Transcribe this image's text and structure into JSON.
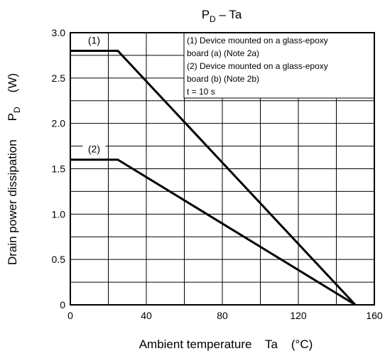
{
  "chart_data": {
    "type": "line",
    "title_main": "P",
    "title_sub": "D",
    "title_rest": " – Ta",
    "xlabel": "Ambient temperature    Ta    (°C)",
    "ylabel_text": "Drain power dissipation",
    "ylabel_sym_main": "P",
    "ylabel_sym_sub": "D",
    "ylabel_unit": "(W)",
    "xlim": [
      0,
      160
    ],
    "ylim": [
      0,
      3.0
    ],
    "x_ticks": [
      0,
      40,
      80,
      120,
      160
    ],
    "x_tick_labels": [
      "0",
      "40",
      "80",
      "120",
      "160"
    ],
    "y_ticks": [
      0,
      0.5,
      1.0,
      1.5,
      2.0,
      2.5,
      3.0
    ],
    "y_tick_labels": [
      "0",
      "0.5",
      "1.0",
      "1.5",
      "2.0",
      "2.5",
      "3.0"
    ],
    "grid": true,
    "grid_x_step": 20,
    "grid_y_step": 0.25,
    "series": [
      {
        "name": "(1)",
        "x": [
          0,
          25,
          150
        ],
        "y": [
          2.8,
          2.8,
          0
        ]
      },
      {
        "name": "(2)",
        "x": [
          0,
          25,
          150
        ],
        "y": [
          1.6,
          1.6,
          0
        ]
      }
    ],
    "legend_lines": [
      "(1) Device mounted on a glass-epoxy",
      "board (a) (Note 2a)",
      "(2) Device mounted on a glass-epoxy",
      "board (b) (Note 2b)",
      "t = 10 s"
    ],
    "legend_position": "top-right"
  }
}
